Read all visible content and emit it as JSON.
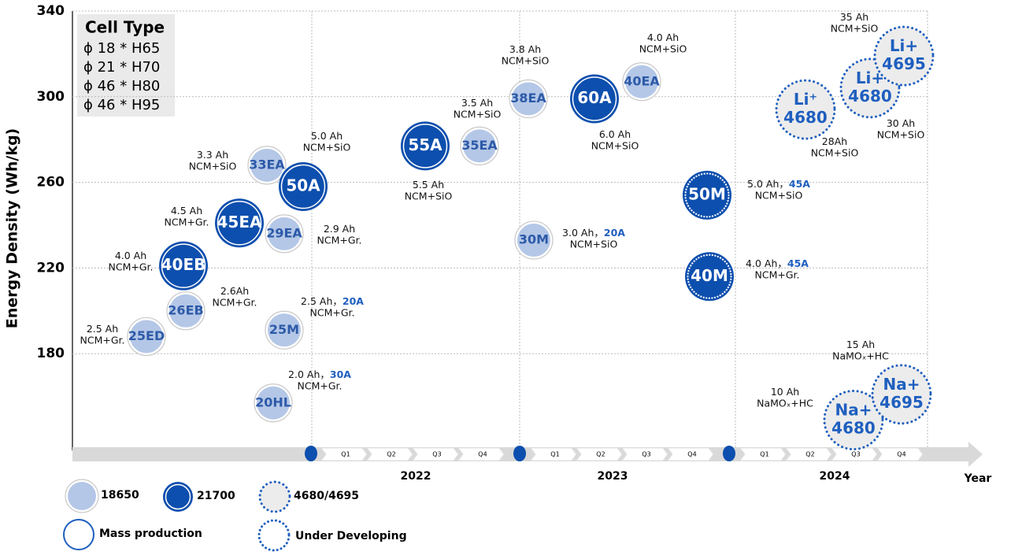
{
  "chart_data": {
    "type": "bubble",
    "y_label": "Energy Density (Wh/kg)",
    "ylim": [
      135,
      340
    ],
    "yticks": [
      180,
      220,
      260,
      300,
      340
    ],
    "grid": true,
    "cell_type": {
      "title": "Cell Type",
      "items": [
        "ϕ 18 * H65",
        "ϕ 21 * H70",
        "ϕ 46 * H80",
        "ϕ 46 * H95"
      ]
    },
    "timeline": {
      "years": [
        "2022",
        "2023",
        "2024"
      ],
      "quarters": [
        "Q1",
        "Q2",
        "Q3",
        "Q4"
      ],
      "axis_label": "Year"
    },
    "legend": {
      "cells": [
        {
          "name": "18650",
          "color": "#b4c7e7"
        },
        {
          "name": "21700",
          "color": "#0d4fae"
        },
        {
          "name": "4680/4695",
          "color": "#ececec"
        }
      ],
      "status": [
        "Mass production",
        "Under Developing"
      ]
    },
    "bubbles": [
      {
        "label": [
          "25ED"
        ],
        "value": 188,
        "cell": "18650",
        "status": "Mass production",
        "note": [
          "2.5 Ah",
          "NCM+Gr."
        ]
      },
      {
        "label": [
          "26EB"
        ],
        "value": 200,
        "cell": "18650",
        "status": "Mass production",
        "note": [
          "2.6Ah",
          "NCM+Gr."
        ]
      },
      {
        "label": [
          "40EB"
        ],
        "value": 221,
        "cell": "21700",
        "status": "Mass production",
        "note": [
          "4.0 Ah",
          "NCM+Gr."
        ]
      },
      {
        "label": [
          "45EA"
        ],
        "value": 241,
        "cell": "21700",
        "status": "Mass production",
        "note": [
          "4.5 Ah",
          "NCM+Gr."
        ]
      },
      {
        "label": [
          "29EA"
        ],
        "value": 236,
        "cell": "18650",
        "status": "Mass production",
        "note": [
          "2.9 Ah",
          "NCM+Gr."
        ]
      },
      {
        "label": [
          "33EA"
        ],
        "value": 268,
        "cell": "18650",
        "status": "Mass production",
        "note": [
          "3.3 Ah",
          "NCM+SiO"
        ]
      },
      {
        "label": [
          "50A"
        ],
        "value": 258,
        "cell": "21700",
        "status": "Mass production",
        "note": [
          "5.0 Ah",
          "NCM+SiO"
        ]
      },
      {
        "label": [
          "25M"
        ],
        "value": 191,
        "cell": "18650",
        "status": "Mass production",
        "note": [
          "2.5 Ah，",
          "NCM+Gr."
        ],
        "rate": "20A"
      },
      {
        "label": [
          "20HL"
        ],
        "value": 157,
        "cell": "18650",
        "status": "Mass production",
        "note": [
          "2.0 Ah，",
          "NCM+Gr."
        ],
        "rate": "30A"
      },
      {
        "label": [
          "55A"
        ],
        "value": 277,
        "cell": "21700",
        "status": "Mass production",
        "note": [
          "5.5 Ah",
          "NCM+SiO"
        ]
      },
      {
        "label": [
          "35EA"
        ],
        "value": 277,
        "cell": "18650",
        "status": "Mass production",
        "note": [
          "3.5 Ah",
          "NCM+SiO"
        ]
      },
      {
        "label": [
          "38EA"
        ],
        "value": 299,
        "cell": "18650",
        "status": "Mass production",
        "note": [
          "3.8 Ah",
          "NCM+SiO"
        ]
      },
      {
        "label": [
          "30M"
        ],
        "value": 233,
        "cell": "18650",
        "status": "Mass production",
        "note": [
          "3.0 Ah，",
          "NCM+SiO"
        ],
        "rate": "20A"
      },
      {
        "label": [
          "60A"
        ],
        "value": 299,
        "cell": "21700",
        "status": "Mass production",
        "note": [
          "6.0 Ah",
          "NCM+SiO"
        ]
      },
      {
        "label": [
          "40EA"
        ],
        "value": 307,
        "cell": "18650",
        "status": "Mass production",
        "note": [
          "4.0 Ah",
          "NCM+SiO"
        ]
      },
      {
        "label": [
          "50M"
        ],
        "value": 254,
        "cell": "21700",
        "status": "Under Developing",
        "note": [
          "5.0 Ah，",
          "NCM+SiO"
        ],
        "rate": "45A"
      },
      {
        "label": [
          "40M"
        ],
        "value": 216,
        "cell": "21700",
        "status": "Under Developing",
        "note": [
          "4.0 Ah，",
          "NCM+Gr."
        ],
        "rate": "45A"
      },
      {
        "label": [
          "Li⁺",
          "4680"
        ],
        "value": 294,
        "cell": "4680/4695",
        "status": "Under Developing",
        "note": [
          "28Ah",
          "NCM+SiO"
        ]
      },
      {
        "label": [
          "Li+",
          "4680"
        ],
        "value": 304,
        "cell": "4680/4695",
        "status": "Under Developing",
        "note": [
          "30 Ah",
          "NCM+SiO"
        ]
      },
      {
        "label": [
          "Li+",
          "4695"
        ],
        "value": 319,
        "cell": "4680/4695",
        "status": "Under Developing",
        "note": [
          "35 Ah",
          "NCM+SiO"
        ]
      },
      {
        "label": [
          "Na+",
          "4680"
        ],
        "value": 149,
        "cell": "4680/4695",
        "status": "Under Developing",
        "note": [
          "10 Ah",
          "NaMOₓ+HC"
        ]
      },
      {
        "label": [
          "Na+",
          "4695"
        ],
        "value": 161,
        "cell": "4680/4695",
        "status": "Under Developing",
        "note": [
          "15 Ah",
          "NaMOₓ+HC"
        ]
      }
    ]
  }
}
